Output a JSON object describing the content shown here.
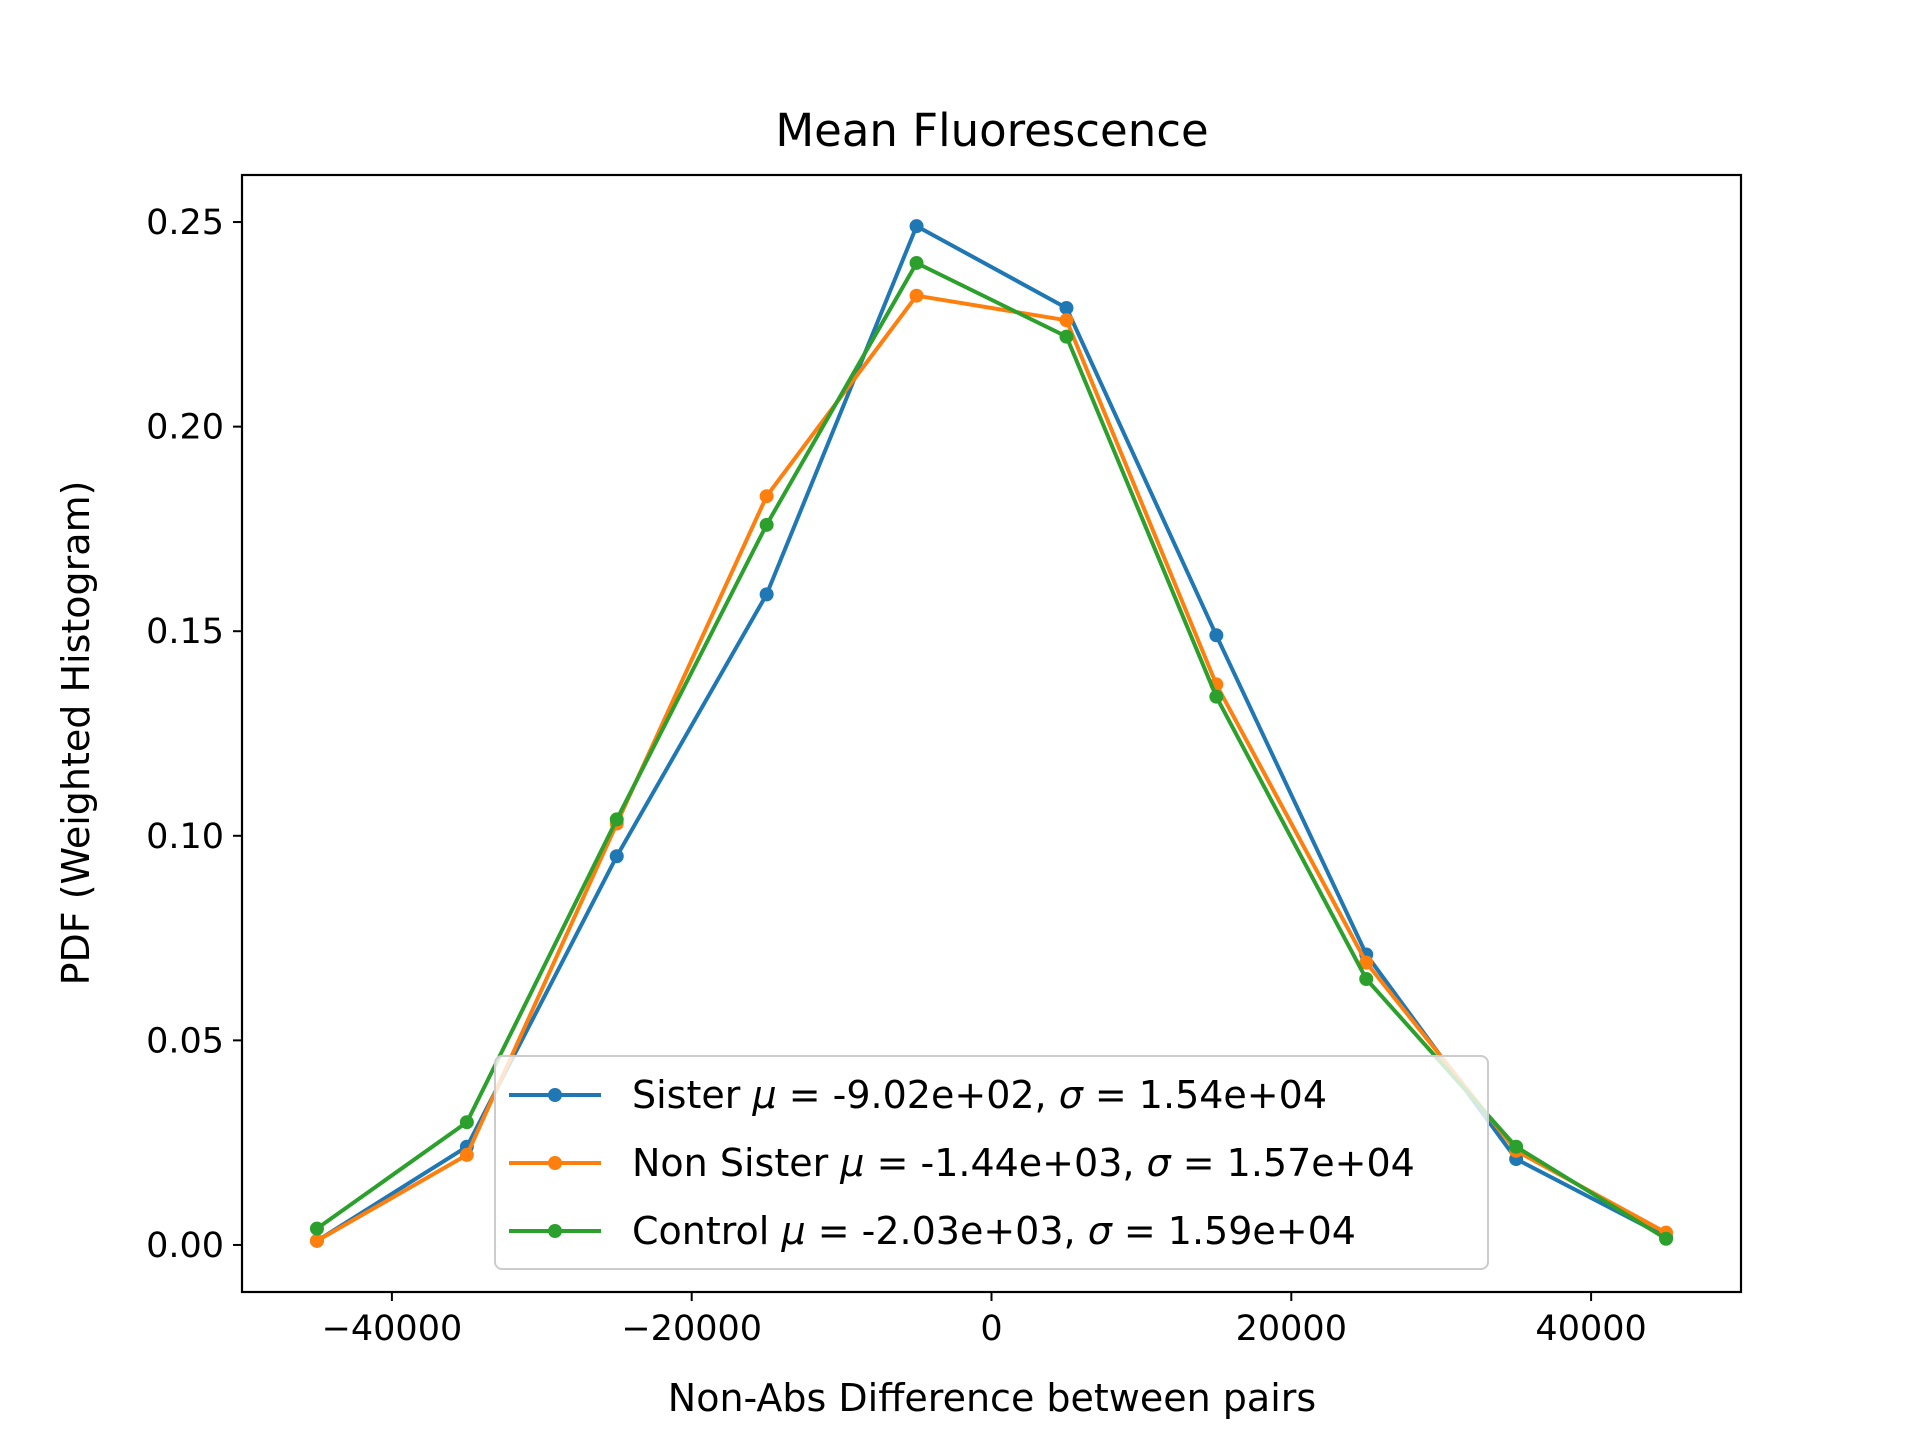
{
  "chart_data": {
    "type": "line",
    "title": "Mean Fluorescence",
    "xlabel": "Non-Abs Difference between pairs",
    "ylabel": "PDF (Weighted Histogram)",
    "xlim": [
      -50000,
      50000
    ],
    "ylim": [
      -0.0115,
      0.2615
    ],
    "x_ticks": [
      -40000,
      -20000,
      0,
      20000,
      40000
    ],
    "x_tick_labels": [
      "−40000",
      "−20000",
      "0",
      "20000",
      "40000"
    ],
    "y_ticks": [
      0.0,
      0.05,
      0.1,
      0.15,
      0.2,
      0.25
    ],
    "y_tick_labels": [
      "0.00",
      "0.05",
      "0.10",
      "0.15",
      "0.20",
      "0.25"
    ],
    "grid": false,
    "legend_position": "lower center",
    "x": [
      -45000,
      -35000,
      -25000,
      -15000,
      -5000,
      5000,
      15000,
      25000,
      35000,
      45000
    ],
    "series": [
      {
        "name": "Sister",
        "legend_label": "Sister μ = -9.02e+02, σ = 1.54e+04",
        "label_name": "Sister ",
        "label_mean": " = -9.02e+02, ",
        "label_sigma": " = 1.54e+04",
        "color": "#1f77b4",
        "values": [
          0.001,
          0.024,
          0.095,
          0.159,
          0.249,
          0.229,
          0.149,
          0.071,
          0.021,
          0.002
        ]
      },
      {
        "name": "Non Sister",
        "legend_label": "Non Sister μ = -1.44e+03, σ = 1.57e+04",
        "label_name": "Non Sister ",
        "label_mean": " = -1.44e+03, ",
        "label_sigma": " = 1.57e+04",
        "color": "#ff7f0e",
        "values": [
          0.001,
          0.022,
          0.103,
          0.183,
          0.232,
          0.226,
          0.137,
          0.069,
          0.023,
          0.003
        ]
      },
      {
        "name": "Control",
        "legend_label": "Control μ = -2.03e+03, σ = 1.59e+04",
        "label_name": "Control ",
        "label_mean": " = -2.03e+03, ",
        "label_sigma": " = 1.59e+04",
        "color": "#2ca02c",
        "values": [
          0.004,
          0.03,
          0.104,
          0.176,
          0.24,
          0.222,
          0.134,
          0.065,
          0.024,
          0.0015
        ]
      }
    ]
  }
}
